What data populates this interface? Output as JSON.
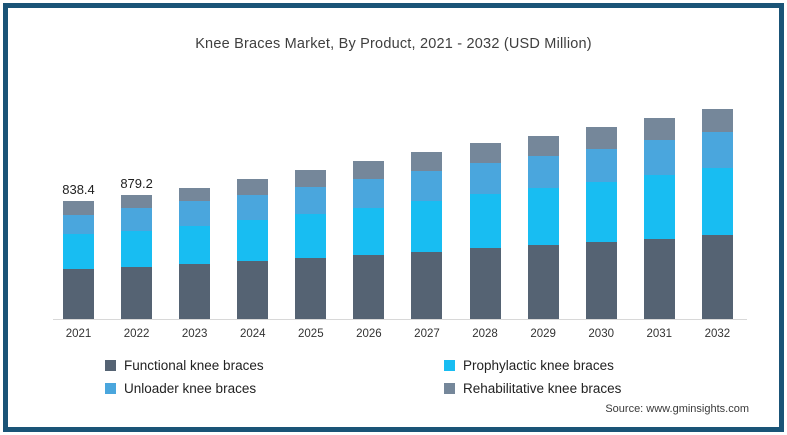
{
  "title": "Knee Braces Market, By Product, 2021 - 2032 (USD Million)",
  "source": "Source: www.gminsights.com",
  "frame_border_color": "#1a5477",
  "chart_data": {
    "type": "bar",
    "stacked": true,
    "title": "Knee Braces Market, By Product, 2021 - 2032 (USD Million)",
    "units": "USD Million",
    "grid": false,
    "legend_position": "bottom",
    "categories": [
      "2021",
      "2022",
      "2023",
      "2024",
      "2025",
      "2026",
      "2027",
      "2028",
      "2029",
      "2030",
      "2031",
      "2032"
    ],
    "series": [
      {
        "name": "Functional knee braces",
        "color": "#556373",
        "values": [
          357,
          372,
          387,
          412,
          433,
          455,
          478,
          500,
          523,
          546,
          570,
          595
        ]
      },
      {
        "name": "Prophylactic knee braces",
        "color": "#18bdf2",
        "values": [
          248,
          252,
          273,
          288,
          310,
          334,
          360,
          385,
          405,
          425,
          450,
          475
        ]
      },
      {
        "name": "Unloader knee braces",
        "color": "#4aa6dd",
        "values": [
          135,
          166,
          178,
          180,
          190,
          200,
          210,
          218,
          224,
          235,
          245,
          255
        ]
      },
      {
        "name": "Rehabilitative knee braces",
        "color": "#75879a",
        "values": [
          98.4,
          89.2,
          90,
          114,
          121,
          129,
          135,
          140,
          144,
          154,
          158,
          163
        ]
      }
    ],
    "totals": [
      838.4,
      879.2,
      928,
      994,
      1054,
      1118,
      1183,
      1243,
      1296,
      1360,
      1423,
      1488
    ],
    "value_labels": [
      "838.4",
      "879.2",
      "",
      "",
      "",
      "",
      "",
      "",
      "",
      "",
      "",
      ""
    ],
    "ylim": [
      0,
      1600
    ]
  }
}
